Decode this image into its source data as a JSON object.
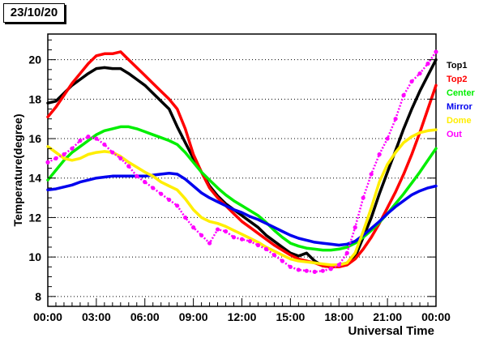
{
  "date_label": "23/10/20",
  "chart_data": {
    "type": "line",
    "title": "",
    "xlabel": "Universal Time",
    "ylabel": "Temperature(degree)",
    "xlim": [
      0,
      24
    ],
    "ylim": [
      7.5,
      21.3
    ],
    "x_ticks": [
      0,
      3,
      6,
      9,
      12,
      15,
      18,
      21,
      24
    ],
    "x_tick_labels": [
      "00:00",
      "03:00",
      "06:00",
      "09:00",
      "12:00",
      "15:00",
      "18:00",
      "21:00",
      "00:00"
    ],
    "y_ticks": [
      8,
      10,
      12,
      14,
      16,
      18,
      20
    ],
    "y_tick_labels": [
      "8",
      "10",
      "12",
      "14",
      "16",
      "18",
      "20"
    ],
    "grid": "horizontal dotted",
    "legend_position": "right",
    "series": [
      {
        "name": "Top1",
        "color": "#000000",
        "style": "thick",
        "x": [
          0,
          0.5,
          1,
          1.5,
          2,
          2.5,
          3,
          3.5,
          4,
          4.5,
          5,
          5.5,
          6,
          6.5,
          7,
          7.5,
          8,
          8.5,
          9,
          9.5,
          10,
          10.5,
          11,
          11.5,
          12,
          12.5,
          13,
          13.5,
          14,
          14.5,
          15,
          15.5,
          16,
          16.5,
          17,
          17.5,
          18,
          18.5,
          19,
          19.5,
          20,
          20.5,
          21,
          21.5,
          22,
          22.5,
          23,
          23.5,
          24
        ],
        "y": [
          17.8,
          17.9,
          18.3,
          18.7,
          19.0,
          19.3,
          19.55,
          19.6,
          19.55,
          19.55,
          19.3,
          19.0,
          18.7,
          18.3,
          17.9,
          17.5,
          16.6,
          15.8,
          15.0,
          14.3,
          13.6,
          13.1,
          12.7,
          12.4,
          12.1,
          11.8,
          11.5,
          11.1,
          10.8,
          10.5,
          10.2,
          10.05,
          10.2,
          9.8,
          9.55,
          9.5,
          9.6,
          9.7,
          10.0,
          11.0,
          12.0,
          13.2,
          14.3,
          15.4,
          16.5,
          17.5,
          18.4,
          19.2,
          20.0
        ]
      },
      {
        "name": "Top2",
        "color": "#ff0000",
        "style": "thick",
        "x": [
          0,
          0.5,
          1,
          1.5,
          2,
          2.5,
          3,
          3.5,
          4,
          4.5,
          5,
          5.5,
          6,
          6.5,
          7,
          7.5,
          8,
          8.5,
          9,
          9.5,
          10,
          10.5,
          11,
          11.5,
          12,
          12.5,
          13,
          13.5,
          14,
          14.5,
          15,
          15.5,
          16,
          16.5,
          17,
          17.5,
          18,
          18.5,
          19,
          19.5,
          20,
          20.5,
          21,
          21.5,
          22,
          22.5,
          23,
          23.5,
          24
        ],
        "y": [
          17.1,
          17.6,
          18.2,
          18.8,
          19.3,
          19.8,
          20.2,
          20.3,
          20.3,
          20.4,
          20.0,
          19.6,
          19.2,
          18.8,
          18.4,
          18.0,
          17.5,
          16.5,
          15.2,
          14.3,
          13.5,
          13.0,
          12.6,
          12.2,
          11.8,
          11.5,
          11.2,
          10.9,
          10.6,
          10.35,
          10.1,
          9.9,
          9.8,
          9.7,
          9.55,
          9.5,
          9.5,
          9.6,
          9.9,
          10.4,
          11.0,
          11.7,
          12.5,
          13.3,
          14.2,
          15.2,
          16.3,
          17.5,
          18.7
        ]
      },
      {
        "name": "Center",
        "color": "#00ee00",
        "style": "thick",
        "x": [
          0,
          0.5,
          1,
          1.5,
          2,
          2.5,
          3,
          3.5,
          4,
          4.5,
          5,
          5.5,
          6,
          6.5,
          7,
          7.5,
          8,
          8.5,
          9,
          9.5,
          10,
          10.5,
          11,
          11.5,
          12,
          12.5,
          13,
          13.5,
          14,
          14.5,
          15,
          15.5,
          16,
          16.5,
          17,
          17.5,
          18,
          18.5,
          19,
          19.5,
          20,
          20.5,
          21,
          21.5,
          22,
          22.5,
          23,
          23.5,
          24
        ],
        "y": [
          13.9,
          14.4,
          14.9,
          15.3,
          15.6,
          15.9,
          16.2,
          16.4,
          16.5,
          16.6,
          16.6,
          16.5,
          16.35,
          16.2,
          16.05,
          15.9,
          15.7,
          15.3,
          14.8,
          14.3,
          13.9,
          13.5,
          13.15,
          12.85,
          12.6,
          12.35,
          12.1,
          11.75,
          11.35,
          11.0,
          10.7,
          10.55,
          10.45,
          10.4,
          10.35,
          10.35,
          10.4,
          10.5,
          10.7,
          11.0,
          11.35,
          11.75,
          12.2,
          12.7,
          13.2,
          13.75,
          14.3,
          14.9,
          15.5
        ]
      },
      {
        "name": "Mirror",
        "color": "#0000ee",
        "style": "thick",
        "x": [
          0,
          0.5,
          1,
          1.5,
          2,
          2.5,
          3,
          3.5,
          4,
          4.5,
          5,
          5.5,
          6,
          6.5,
          7,
          7.5,
          8,
          8.5,
          9,
          9.5,
          10,
          10.5,
          11,
          11.5,
          12,
          12.5,
          13,
          13.5,
          14,
          14.5,
          15,
          15.5,
          16,
          16.5,
          17,
          17.5,
          18,
          18.5,
          19,
          19.5,
          20,
          20.5,
          21,
          21.5,
          22,
          22.5,
          23,
          23.5,
          24
        ],
        "y": [
          13.4,
          13.45,
          13.55,
          13.65,
          13.8,
          13.9,
          14.0,
          14.05,
          14.1,
          14.1,
          14.1,
          14.1,
          14.1,
          14.15,
          14.2,
          14.25,
          14.2,
          13.95,
          13.6,
          13.25,
          13.0,
          12.8,
          12.6,
          12.4,
          12.25,
          12.05,
          11.9,
          11.7,
          11.5,
          11.3,
          11.1,
          10.95,
          10.85,
          10.75,
          10.7,
          10.65,
          10.6,
          10.65,
          10.8,
          11.1,
          11.45,
          11.8,
          12.2,
          12.55,
          12.85,
          13.15,
          13.35,
          13.5,
          13.6
        ]
      },
      {
        "name": "Dome",
        "color": "#ffee00",
        "style": "thick",
        "x": [
          0,
          0.5,
          1,
          1.5,
          2,
          2.5,
          3,
          3.5,
          4,
          4.5,
          5,
          5.5,
          6,
          6.5,
          7,
          7.5,
          8,
          8.5,
          9,
          9.5,
          10,
          10.5,
          11,
          11.5,
          12,
          12.5,
          13,
          13.5,
          14,
          14.5,
          15,
          15.5,
          16,
          16.5,
          17,
          17.5,
          18,
          18.5,
          19,
          19.5,
          20,
          20.5,
          21,
          21.5,
          22,
          22.5,
          23,
          23.5,
          24
        ],
        "y": [
          15.6,
          15.3,
          15.0,
          14.9,
          15.0,
          15.2,
          15.3,
          15.35,
          15.3,
          15.1,
          14.8,
          14.55,
          14.3,
          14.1,
          13.8,
          13.6,
          13.4,
          12.95,
          12.4,
          12.0,
          11.8,
          11.7,
          11.55,
          11.35,
          11.15,
          10.95,
          10.75,
          10.5,
          10.3,
          10.1,
          9.9,
          9.8,
          9.75,
          9.7,
          9.65,
          9.6,
          9.6,
          9.7,
          10.2,
          11.3,
          12.5,
          13.8,
          14.7,
          15.3,
          15.8,
          16.1,
          16.3,
          16.4,
          16.45
        ]
      },
      {
        "name": "Out",
        "color": "#ff00ff",
        "style": "markers",
        "x": [
          0,
          0.5,
          1,
          1.5,
          2,
          2.5,
          3,
          3.5,
          4,
          4.5,
          5,
          5.5,
          6,
          6.5,
          7,
          7.5,
          8,
          8.5,
          9,
          9.5,
          10,
          10.5,
          11,
          11.5,
          12,
          12.5,
          13,
          13.5,
          14,
          14.5,
          15,
          15.5,
          16,
          16.5,
          17,
          17.5,
          18,
          18.5,
          19,
          19.5,
          20,
          20.5,
          21,
          21.5,
          22,
          22.5,
          23,
          23.5,
          24
        ],
        "y": [
          14.8,
          15.0,
          15.2,
          15.5,
          15.9,
          16.1,
          16.0,
          15.7,
          15.3,
          15.0,
          14.6,
          14.1,
          13.8,
          13.5,
          13.2,
          12.9,
          12.6,
          12.0,
          11.5,
          11.1,
          10.7,
          11.4,
          11.3,
          11.0,
          10.9,
          10.8,
          10.6,
          10.4,
          10.1,
          9.8,
          9.5,
          9.35,
          9.3,
          9.25,
          9.3,
          9.4,
          9.6,
          10.2,
          11.5,
          13.0,
          14.2,
          15.2,
          16.0,
          17.0,
          18.2,
          18.9,
          19.3,
          19.8,
          20.4
        ]
      }
    ]
  }
}
